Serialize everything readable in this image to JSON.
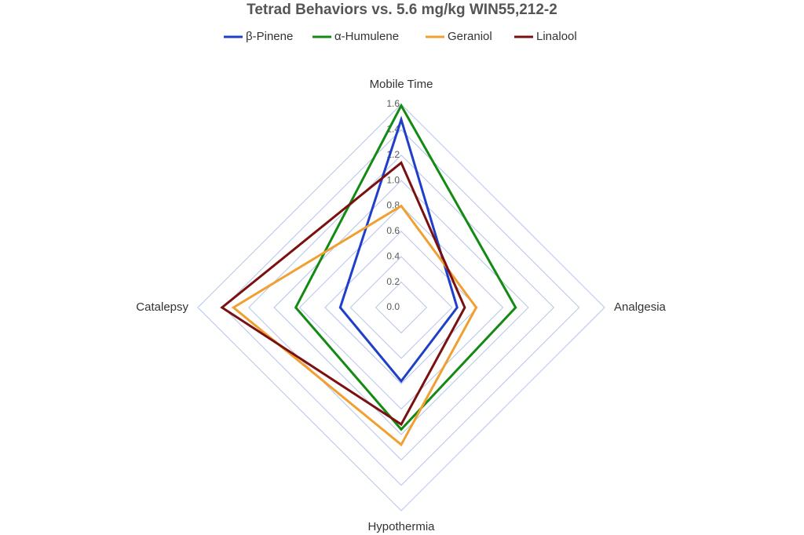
{
  "chart_data": {
    "type": "radar",
    "title": "Tetrad Behaviors vs. 5.6 mg/kg WIN55,212-2",
    "categories": [
      "Mobile Time",
      "Analgesia",
      "Hypothermia",
      "Catalepsy"
    ],
    "rlim": [
      0,
      1.6
    ],
    "rticks": [
      {
        "value": 0,
        "label": "0.0"
      },
      0.2,
      0.4,
      0.6,
      0.8,
      {
        "value": 1,
        "label": "1.0"
      },
      1.2,
      1.4,
      1.6
    ],
    "grid": true,
    "legend": "top",
    "series": [
      {
        "name": "β-Pinene",
        "color": "#1f3fc8",
        "values": [
          1.48,
          0.44,
          0.58,
          0.48
        ]
      },
      {
        "name": "α-Humulene",
        "color": "#138a13",
        "values": [
          1.59,
          0.9,
          0.96,
          0.83
        ]
      },
      {
        "name": "Geraniol",
        "color": "#f0a030",
        "values": [
          0.8,
          0.59,
          1.08,
          1.32
        ]
      },
      {
        "name": "Linalool",
        "color": "#7b1010",
        "values": [
          1.14,
          0.5,
          0.92,
          1.41
        ]
      }
    ]
  }
}
